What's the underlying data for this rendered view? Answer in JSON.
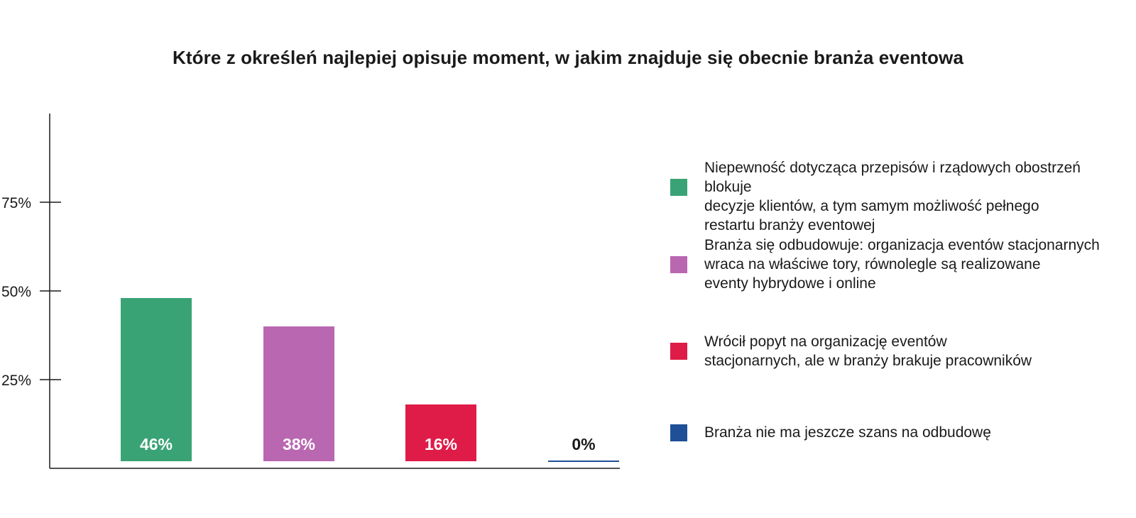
{
  "chart_data": {
    "type": "bar",
    "title": "Które z określeń najlepiej opisuje moment, w jakim znajduje się obecnie branża eventowa",
    "xlabel": "",
    "ylabel": "",
    "ylim": [
      0,
      100
    ],
    "yticks": [
      25,
      50,
      75
    ],
    "ytick_labels": [
      "25%",
      "50%",
      "75%"
    ],
    "grid": false,
    "legend_position": "right",
    "categories": [
      "Niepewność dotycząca przepisów i rządowych obostrzeń blokuje decyzje klientów, a tym samym możliwość pełnego restartu branży eventowej",
      "Branża się odbudowuje: organizacja eventów stacjonarnych wraca na właściwe tory, równolegle są realizowane eventy hybrydowe i online",
      "Wrócił popyt na organizację eventów stacjonarnych, ale w branży brakuje pracowników",
      "Branża nie ma jeszcze szans na odbudowę"
    ],
    "values": [
      46,
      38,
      16,
      0
    ],
    "data_labels": [
      "46%",
      "38%",
      "16%",
      "0%"
    ],
    "colors": [
      "#3aa376",
      "#b967b1",
      "#df1c48",
      "#1f4f96"
    ]
  }
}
